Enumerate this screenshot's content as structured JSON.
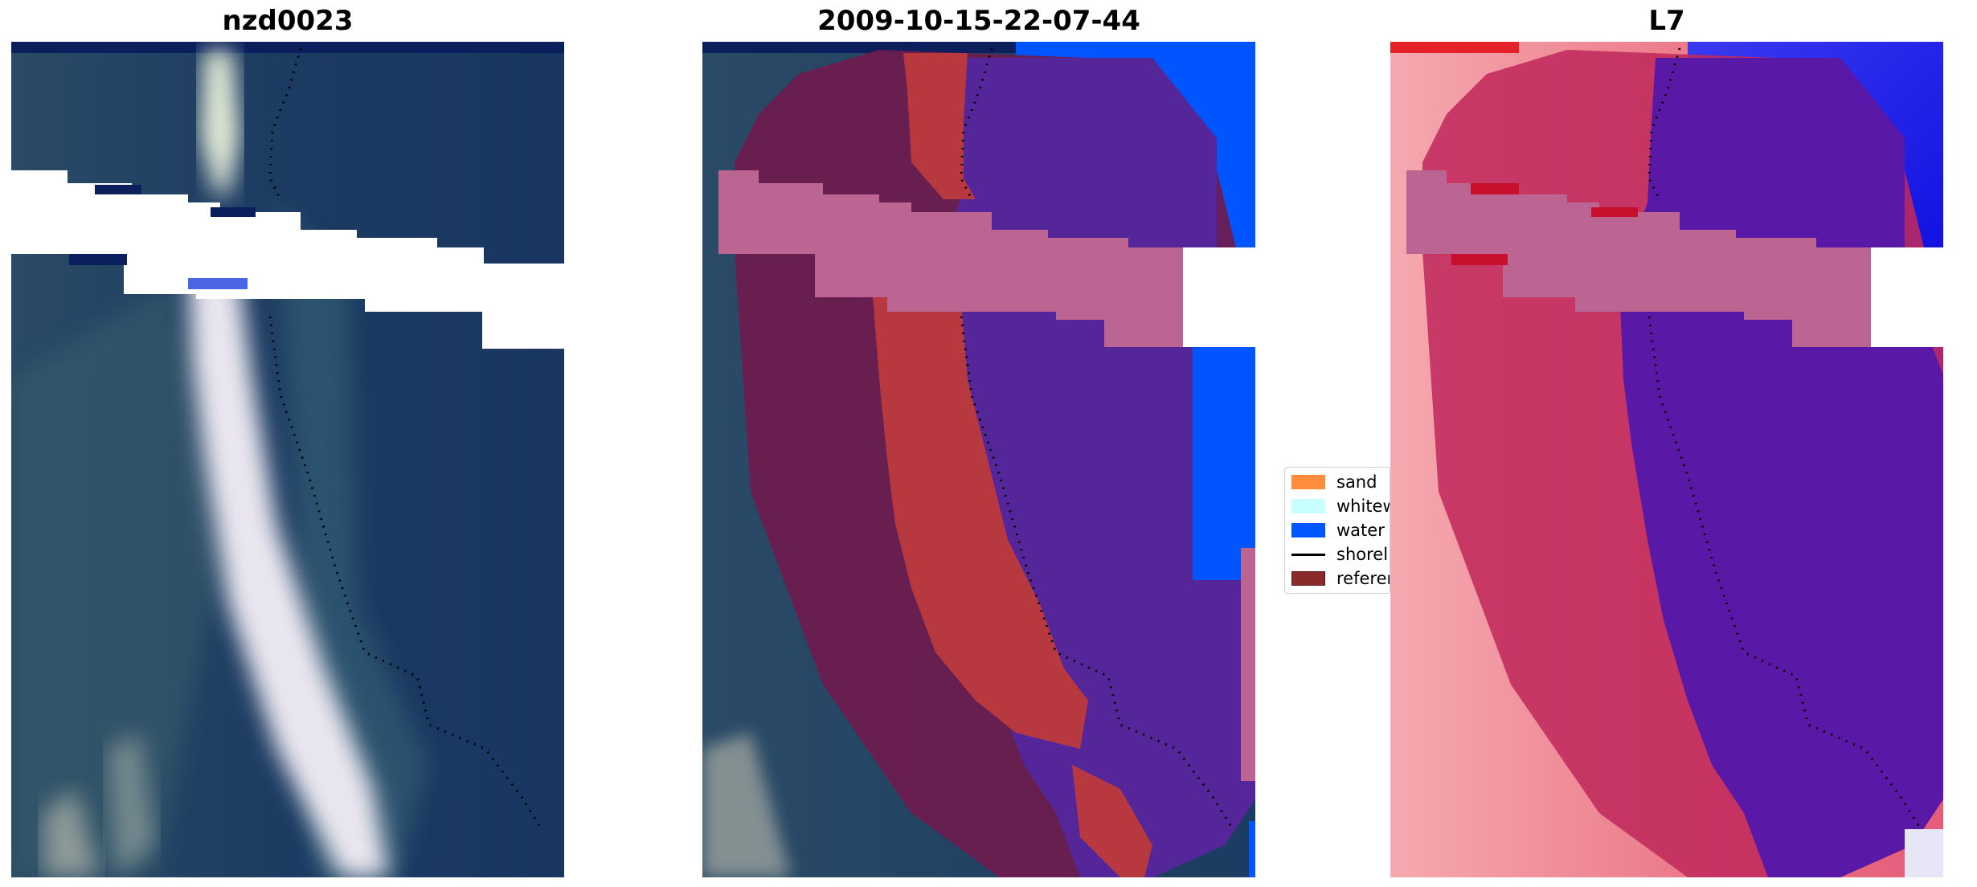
{
  "panels": [
    {
      "title": "nzd0023",
      "kind": "rgb"
    },
    {
      "title": "2009-10-15-22-07-44",
      "kind": "classified"
    },
    {
      "title": "L7",
      "kind": "index"
    }
  ],
  "legend": {
    "items": [
      {
        "label": "sand",
        "color": "#ff8c3d",
        "kind": "patch"
      },
      {
        "label": "whitew",
        "color": "#c8ffff",
        "kind": "patch"
      },
      {
        "label": "water",
        "color": "#0055ff",
        "kind": "patch"
      },
      {
        "label": "shorel",
        "color": "#000000",
        "kind": "line"
      },
      {
        "label": "referen",
        "color": "#8b2a2a",
        "kind": "patch"
      }
    ]
  },
  "colors": {
    "water_rgb": "#1a3a5e",
    "beach_rgb": "#e9e6ef",
    "land_overlay": "#6e1c4e",
    "sand_overlay": "#b8383f",
    "water_overlay": "#55269a",
    "water_pure": "#0055ff",
    "nodata_overlay": "#bd6592",
    "index_land": "#c02a5c",
    "index_water": "#5a18a6"
  }
}
